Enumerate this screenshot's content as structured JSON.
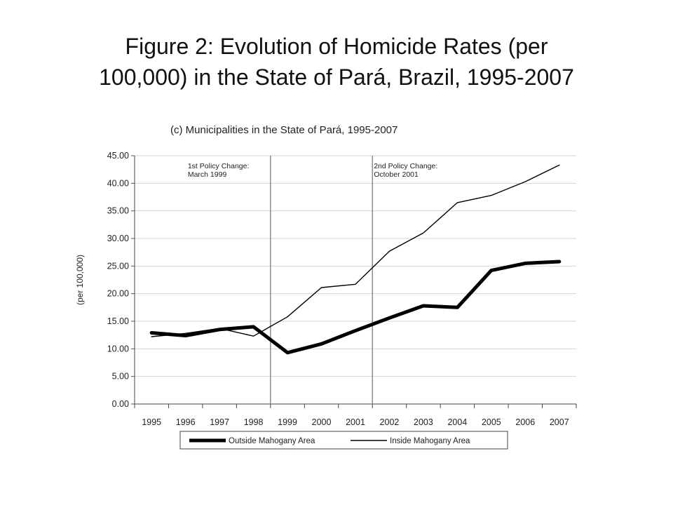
{
  "slide": {
    "title_line1": "Figure 2: Evolution of Homicide Rates (per",
    "title_line2": "100,000) in the State of Pará, Brazil,  1995-2007"
  },
  "chart_data": {
    "type": "line",
    "title": "(c) Municipalities in the State of Pará, 1995-2007",
    "xlabel": "",
    "ylabel": "(per 100,000)",
    "categories": [
      "1995",
      "1996",
      "1997",
      "1998",
      "1999",
      "2000",
      "2001",
      "2002",
      "2003",
      "2004",
      "2005",
      "2006",
      "2007"
    ],
    "ylim": [
      0,
      45
    ],
    "yticks": [
      "0.00",
      "5.00",
      "10.00",
      "15.00",
      "20.00",
      "25.00",
      "30.00",
      "35.00",
      "40.00",
      "45.00"
    ],
    "grid": true,
    "legend_position": "bottom",
    "series": [
      {
        "name": "Outside Mahogany Area",
        "style": "thick",
        "color": "#000000",
        "values": [
          12.9,
          12.4,
          13.5,
          14.0,
          9.3,
          10.9,
          13.3,
          15.6,
          17.8,
          17.5,
          24.2,
          25.5,
          25.8
        ]
      },
      {
        "name": "Inside Mahogany Area",
        "style": "thin",
        "color": "#000000",
        "values": [
          12.2,
          12.8,
          13.7,
          12.3,
          15.8,
          21.1,
          21.7,
          27.7,
          31.0,
          36.5,
          37.8,
          40.3,
          43.3
        ]
      }
    ],
    "annotations": [
      {
        "after_category": "1998",
        "lines": [
          "1st Policy Change:",
          "March 1999"
        ]
      },
      {
        "after_category": "2001",
        "lines": [
          "2nd Policy Change:",
          "October 2001"
        ]
      }
    ]
  }
}
